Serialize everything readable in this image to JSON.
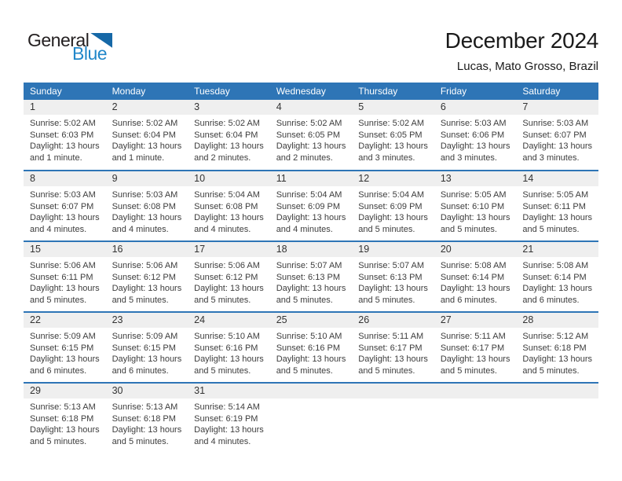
{
  "logo": {
    "general": "General",
    "blue": "Blue"
  },
  "header": {
    "title": "December 2024",
    "subtitle": "Lucas, Mato Grosso, Brazil"
  },
  "weekdays": [
    "Sunday",
    "Monday",
    "Tuesday",
    "Wednesday",
    "Thursday",
    "Friday",
    "Saturday"
  ],
  "colors": {
    "header_blue": "#2E75B6",
    "row_border_blue": "#2E75B6",
    "daynum_gray": "#EFEFEF",
    "logo_text_blue": "#2187C9",
    "logo_triangle_blue": "#1668A7"
  },
  "weeks": [
    [
      {
        "day": "1",
        "sunrise": "Sunrise: 5:02 AM",
        "sunset": "Sunset: 6:03 PM",
        "daylight1": "Daylight: 13 hours",
        "daylight2": "and 1 minute."
      },
      {
        "day": "2",
        "sunrise": "Sunrise: 5:02 AM",
        "sunset": "Sunset: 6:04 PM",
        "daylight1": "Daylight: 13 hours",
        "daylight2": "and 1 minute."
      },
      {
        "day": "3",
        "sunrise": "Sunrise: 5:02 AM",
        "sunset": "Sunset: 6:04 PM",
        "daylight1": "Daylight: 13 hours",
        "daylight2": "and 2 minutes."
      },
      {
        "day": "4",
        "sunrise": "Sunrise: 5:02 AM",
        "sunset": "Sunset: 6:05 PM",
        "daylight1": "Daylight: 13 hours",
        "daylight2": "and 2 minutes."
      },
      {
        "day": "5",
        "sunrise": "Sunrise: 5:02 AM",
        "sunset": "Sunset: 6:05 PM",
        "daylight1": "Daylight: 13 hours",
        "daylight2": "and 3 minutes."
      },
      {
        "day": "6",
        "sunrise": "Sunrise: 5:03 AM",
        "sunset": "Sunset: 6:06 PM",
        "daylight1": "Daylight: 13 hours",
        "daylight2": "and 3 minutes."
      },
      {
        "day": "7",
        "sunrise": "Sunrise: 5:03 AM",
        "sunset": "Sunset: 6:07 PM",
        "daylight1": "Daylight: 13 hours",
        "daylight2": "and 3 minutes."
      }
    ],
    [
      {
        "day": "8",
        "sunrise": "Sunrise: 5:03 AM",
        "sunset": "Sunset: 6:07 PM",
        "daylight1": "Daylight: 13 hours",
        "daylight2": "and 4 minutes."
      },
      {
        "day": "9",
        "sunrise": "Sunrise: 5:03 AM",
        "sunset": "Sunset: 6:08 PM",
        "daylight1": "Daylight: 13 hours",
        "daylight2": "and 4 minutes."
      },
      {
        "day": "10",
        "sunrise": "Sunrise: 5:04 AM",
        "sunset": "Sunset: 6:08 PM",
        "daylight1": "Daylight: 13 hours",
        "daylight2": "and 4 minutes."
      },
      {
        "day": "11",
        "sunrise": "Sunrise: 5:04 AM",
        "sunset": "Sunset: 6:09 PM",
        "daylight1": "Daylight: 13 hours",
        "daylight2": "and 4 minutes."
      },
      {
        "day": "12",
        "sunrise": "Sunrise: 5:04 AM",
        "sunset": "Sunset: 6:09 PM",
        "daylight1": "Daylight: 13 hours",
        "daylight2": "and 5 minutes."
      },
      {
        "day": "13",
        "sunrise": "Sunrise: 5:05 AM",
        "sunset": "Sunset: 6:10 PM",
        "daylight1": "Daylight: 13 hours",
        "daylight2": "and 5 minutes."
      },
      {
        "day": "14",
        "sunrise": "Sunrise: 5:05 AM",
        "sunset": "Sunset: 6:11 PM",
        "daylight1": "Daylight: 13 hours",
        "daylight2": "and 5 minutes."
      }
    ],
    [
      {
        "day": "15",
        "sunrise": "Sunrise: 5:06 AM",
        "sunset": "Sunset: 6:11 PM",
        "daylight1": "Daylight: 13 hours",
        "daylight2": "and 5 minutes."
      },
      {
        "day": "16",
        "sunrise": "Sunrise: 5:06 AM",
        "sunset": "Sunset: 6:12 PM",
        "daylight1": "Daylight: 13 hours",
        "daylight2": "and 5 minutes."
      },
      {
        "day": "17",
        "sunrise": "Sunrise: 5:06 AM",
        "sunset": "Sunset: 6:12 PM",
        "daylight1": "Daylight: 13 hours",
        "daylight2": "and 5 minutes."
      },
      {
        "day": "18",
        "sunrise": "Sunrise: 5:07 AM",
        "sunset": "Sunset: 6:13 PM",
        "daylight1": "Daylight: 13 hours",
        "daylight2": "and 5 minutes."
      },
      {
        "day": "19",
        "sunrise": "Sunrise: 5:07 AM",
        "sunset": "Sunset: 6:13 PM",
        "daylight1": "Daylight: 13 hours",
        "daylight2": "and 5 minutes."
      },
      {
        "day": "20",
        "sunrise": "Sunrise: 5:08 AM",
        "sunset": "Sunset: 6:14 PM",
        "daylight1": "Daylight: 13 hours",
        "daylight2": "and 6 minutes."
      },
      {
        "day": "21",
        "sunrise": "Sunrise: 5:08 AM",
        "sunset": "Sunset: 6:14 PM",
        "daylight1": "Daylight: 13 hours",
        "daylight2": "and 6 minutes."
      }
    ],
    [
      {
        "day": "22",
        "sunrise": "Sunrise: 5:09 AM",
        "sunset": "Sunset: 6:15 PM",
        "daylight1": "Daylight: 13 hours",
        "daylight2": "and 6 minutes."
      },
      {
        "day": "23",
        "sunrise": "Sunrise: 5:09 AM",
        "sunset": "Sunset: 6:15 PM",
        "daylight1": "Daylight: 13 hours",
        "daylight2": "and 6 minutes."
      },
      {
        "day": "24",
        "sunrise": "Sunrise: 5:10 AM",
        "sunset": "Sunset: 6:16 PM",
        "daylight1": "Daylight: 13 hours",
        "daylight2": "and 5 minutes."
      },
      {
        "day": "25",
        "sunrise": "Sunrise: 5:10 AM",
        "sunset": "Sunset: 6:16 PM",
        "daylight1": "Daylight: 13 hours",
        "daylight2": "and 5 minutes."
      },
      {
        "day": "26",
        "sunrise": "Sunrise: 5:11 AM",
        "sunset": "Sunset: 6:17 PM",
        "daylight1": "Daylight: 13 hours",
        "daylight2": "and 5 minutes."
      },
      {
        "day": "27",
        "sunrise": "Sunrise: 5:11 AM",
        "sunset": "Sunset: 6:17 PM",
        "daylight1": "Daylight: 13 hours",
        "daylight2": "and 5 minutes."
      },
      {
        "day": "28",
        "sunrise": "Sunrise: 5:12 AM",
        "sunset": "Sunset: 6:18 PM",
        "daylight1": "Daylight: 13 hours",
        "daylight2": "and 5 minutes."
      }
    ],
    [
      {
        "day": "29",
        "sunrise": "Sunrise: 5:13 AM",
        "sunset": "Sunset: 6:18 PM",
        "daylight1": "Daylight: 13 hours",
        "daylight2": "and 5 minutes."
      },
      {
        "day": "30",
        "sunrise": "Sunrise: 5:13 AM",
        "sunset": "Sunset: 6:18 PM",
        "daylight1": "Daylight: 13 hours",
        "daylight2": "and 5 minutes."
      },
      {
        "day": "31",
        "sunrise": "Sunrise: 5:14 AM",
        "sunset": "Sunset: 6:19 PM",
        "daylight1": "Daylight: 13 hours",
        "daylight2": "and 4 minutes."
      },
      null,
      null,
      null,
      null
    ]
  ]
}
